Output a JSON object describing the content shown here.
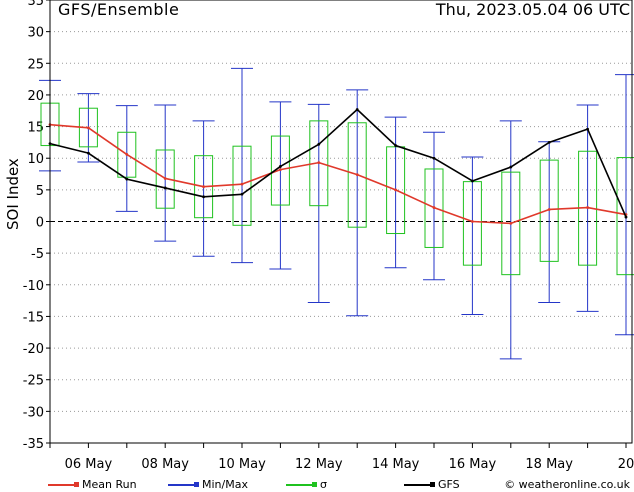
{
  "header": {
    "title": "GFS/Ensemble",
    "datetime": "Thu, 2023.05.04   06 UTC"
  },
  "legend": [
    {
      "label": "Mean Run",
      "color": "#e0392b"
    },
    {
      "label": "Min/Max",
      "color": "#2436c8"
    },
    {
      "label": "σ",
      "color": "#1fc21f"
    },
    {
      "label": "GFS",
      "color": "#000000"
    }
  ],
  "copyright": "© weatheronline.co.uk",
  "chart_data": {
    "type": "line",
    "ylabel": "SOI Index",
    "ylim": [
      -35,
      35
    ],
    "yticks": [
      35,
      30,
      25,
      20,
      15,
      10,
      5,
      0,
      -5,
      -10,
      -15,
      -20,
      -25,
      -30,
      -35
    ],
    "xlim": [
      0,
      15
    ],
    "xticks": [
      {
        "x": 1,
        "label": "06 May"
      },
      {
        "x": 3,
        "label": "08 May"
      },
      {
        "x": 5,
        "label": "10 May"
      },
      {
        "x": 7,
        "label": "12 May"
      },
      {
        "x": 9,
        "label": "14 May"
      },
      {
        "x": 11,
        "label": "16 May"
      },
      {
        "x": 13,
        "label": "18 May"
      },
      {
        "x": 15,
        "label": "20"
      }
    ],
    "grid": true,
    "zero_line": "dashed",
    "series": [
      {
        "name": "Mean Run",
        "color": "#e0392b",
        "x": [
          0,
          1,
          2,
          3,
          4,
          5,
          6,
          7,
          8,
          9,
          10,
          11,
          12,
          13,
          14,
          15
        ],
        "values": [
          15.3,
          14.8,
          10.6,
          6.8,
          5.5,
          5.9,
          8.2,
          9.3,
          7.4,
          5.0,
          2.2,
          0.0,
          -0.3,
          1.9,
          2.2,
          1.1
        ]
      },
      {
        "name": "GFS",
        "color": "#000000",
        "x": [
          0,
          1,
          2,
          3,
          4,
          5,
          6,
          7,
          8,
          9,
          10,
          11,
          12,
          13,
          14,
          15
        ],
        "values": [
          12.3,
          10.8,
          6.7,
          5.3,
          3.9,
          4.3,
          8.7,
          12.2,
          17.7,
          12.0,
          10.0,
          6.4,
          8.6,
          12.5,
          14.6,
          0.7
        ]
      }
    ],
    "minmax": [
      {
        "x": 0,
        "min": 8.0,
        "max": 22.3
      },
      {
        "x": 1,
        "min": 9.4,
        "max": 20.2
      },
      {
        "x": 2,
        "min": 1.6,
        "max": 18.3
      },
      {
        "x": 3,
        "min": -3.1,
        "max": 18.4
      },
      {
        "x": 4,
        "min": -5.5,
        "max": 15.9
      },
      {
        "x": 5,
        "min": -6.5,
        "max": 24.2
      },
      {
        "x": 6,
        "min": -7.5,
        "max": 18.9
      },
      {
        "x": 7,
        "min": -12.8,
        "max": 18.5
      },
      {
        "x": 8,
        "min": -14.9,
        "max": 20.8
      },
      {
        "x": 9,
        "min": -7.3,
        "max": 16.5
      },
      {
        "x": 10,
        "min": -9.2,
        "max": 14.1
      },
      {
        "x": 11,
        "min": -14.7,
        "max": 10.2
      },
      {
        "x": 12,
        "min": -21.7,
        "max": 15.9
      },
      {
        "x": 13,
        "min": -12.8,
        "max": 12.6
      },
      {
        "x": 14,
        "min": -14.2,
        "max": 18.4
      },
      {
        "x": 15,
        "min": -17.9,
        "max": 23.2
      }
    ],
    "sigma": [
      {
        "x": 0,
        "low": 12.0,
        "high": 18.7
      },
      {
        "x": 1,
        "low": 11.8,
        "high": 17.9
      },
      {
        "x": 2,
        "low": 7.0,
        "high": 14.1
      },
      {
        "x": 3,
        "low": 2.1,
        "high": 11.3
      },
      {
        "x": 4,
        "low": 0.6,
        "high": 10.4
      },
      {
        "x": 5,
        "low": -0.6,
        "high": 11.9
      },
      {
        "x": 6,
        "low": 2.6,
        "high": 13.5
      },
      {
        "x": 7,
        "low": 2.5,
        "high": 15.9
      },
      {
        "x": 8,
        "low": -0.9,
        "high": 15.6
      },
      {
        "x": 9,
        "low": -1.9,
        "high": 11.8
      },
      {
        "x": 10,
        "low": -4.1,
        "high": 8.3
      },
      {
        "x": 11,
        "low": -6.9,
        "high": 6.3
      },
      {
        "x": 12,
        "low": -8.4,
        "high": 7.8
      },
      {
        "x": 13,
        "low": -6.3,
        "high": 9.7
      },
      {
        "x": 14,
        "low": -6.9,
        "high": 11.1
      },
      {
        "x": 15,
        "low": -8.4,
        "high": 10.1
      }
    ]
  }
}
